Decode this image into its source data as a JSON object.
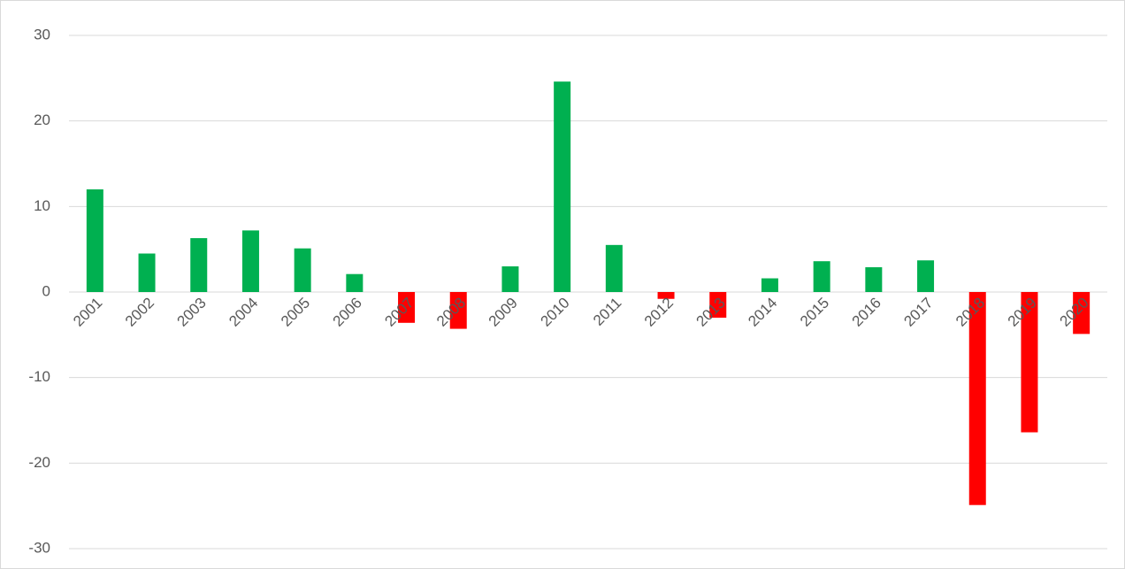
{
  "chart_data": {
    "type": "bar",
    "categories": [
      "2001",
      "2002",
      "2003",
      "2004",
      "2005",
      "2006",
      "2007",
      "2008",
      "2009",
      "2010",
      "2011",
      "2012",
      "2013",
      "2014",
      "2015",
      "2016",
      "2017",
      "2018",
      "2019",
      "2020"
    ],
    "values": [
      12,
      4.5,
      6.3,
      7.2,
      5.1,
      2.1,
      -3.6,
      -4.3,
      3.0,
      24.6,
      5.5,
      -0.8,
      -3.0,
      1.6,
      3.6,
      2.9,
      3.7,
      -24.9,
      -16.4,
      -4.9
    ],
    "colors": [
      "#00b050",
      "#00b050",
      "#00b050",
      "#00b050",
      "#00b050",
      "#00b050",
      "#ff0000",
      "#ff0000",
      "#00b050",
      "#00b050",
      "#00b050",
      "#ff0000",
      "#ff0000",
      "#00b050",
      "#00b050",
      "#00b050",
      "#00b050",
      "#ff0000",
      "#ff0000",
      "#ff0000"
    ],
    "ylim": [
      -30,
      30
    ],
    "yticks": [
      -30,
      -20,
      -10,
      0,
      10,
      20,
      30
    ],
    "grid": true
  }
}
